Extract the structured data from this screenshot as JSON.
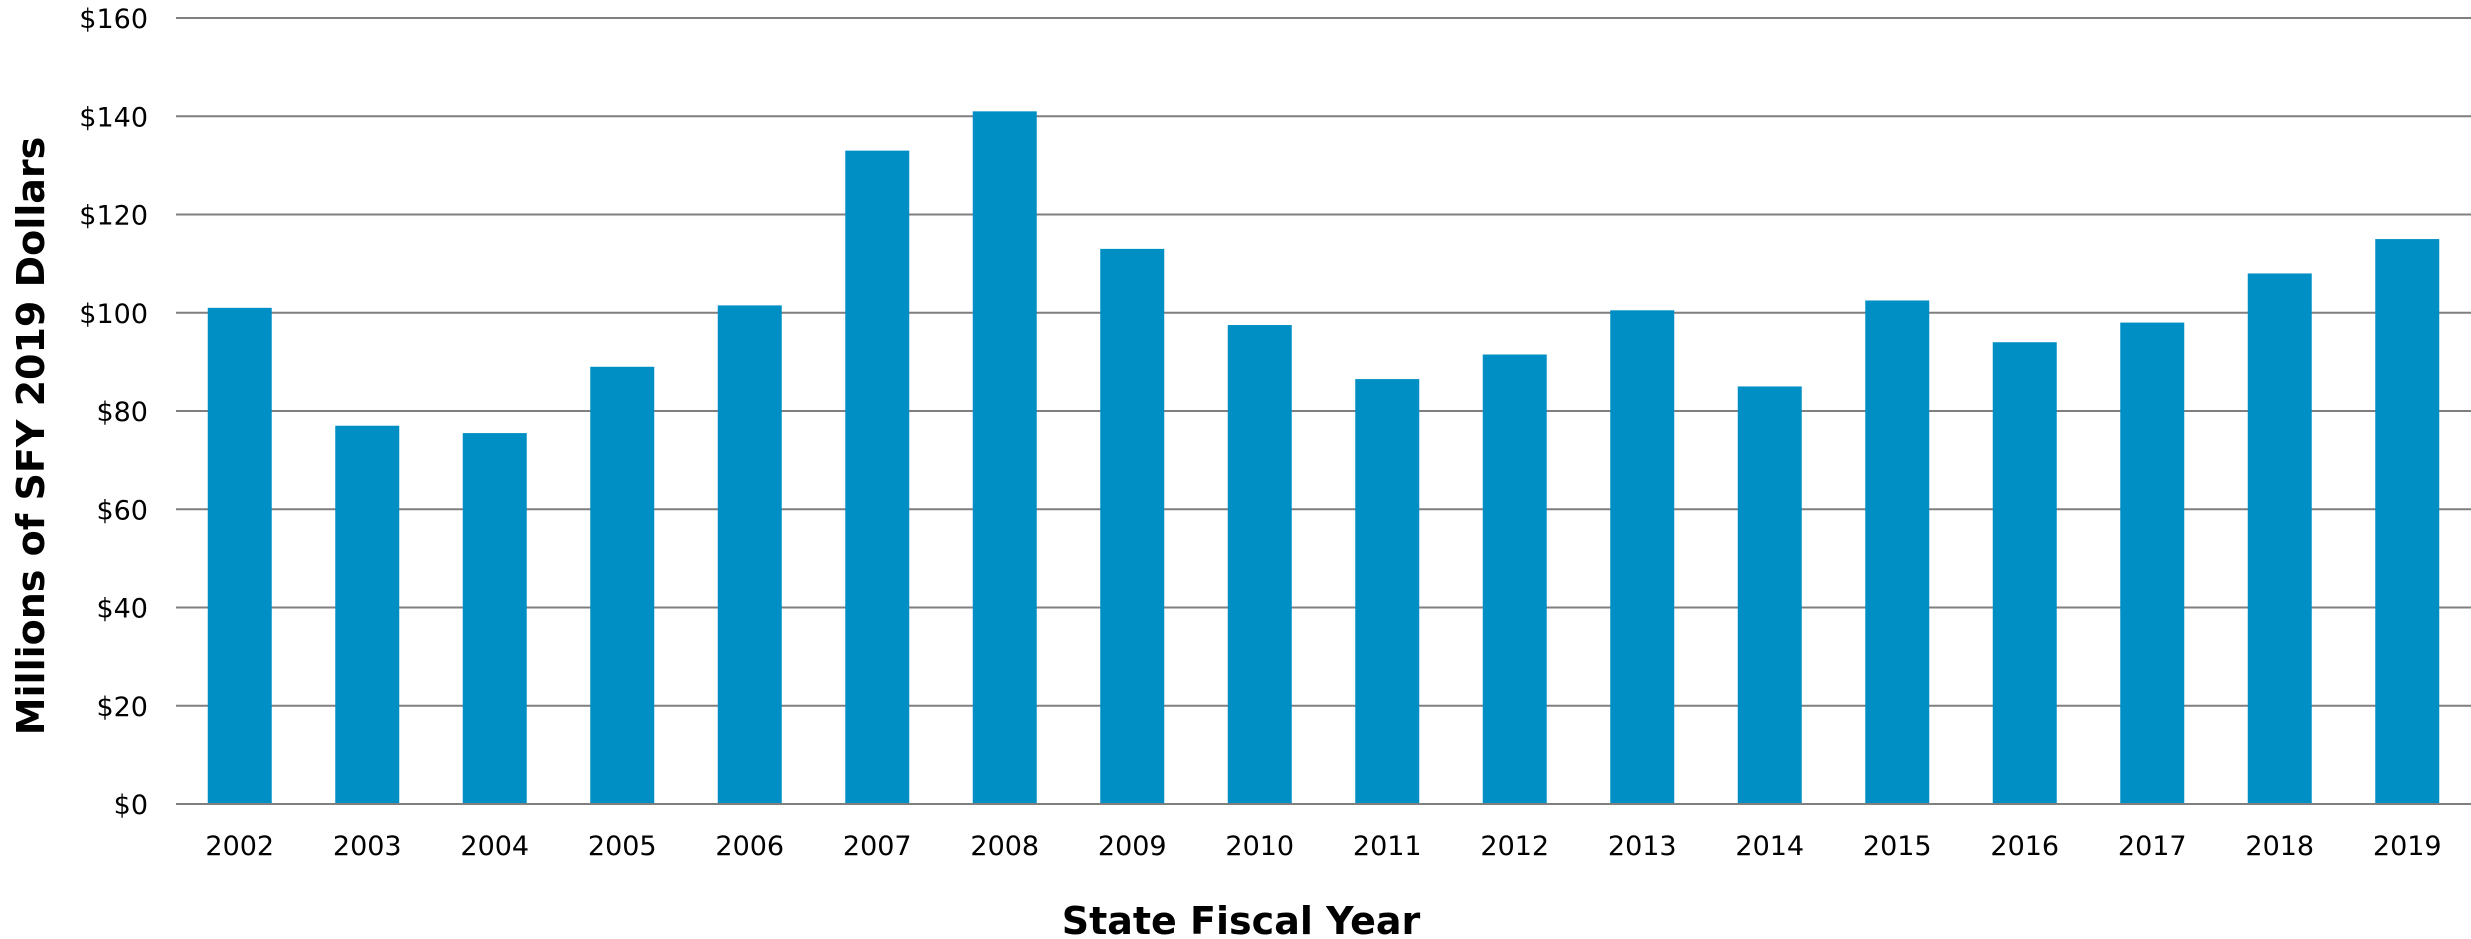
{
  "chart_data": {
    "type": "bar",
    "title": "",
    "xlabel": "State Fiscal Year",
    "ylabel": "Millions of SFY 2019 Dollars",
    "categories": [
      "2002",
      "2003",
      "2004",
      "2005",
      "2006",
      "2007",
      "2008",
      "2009",
      "2010",
      "2011",
      "2012",
      "2013",
      "2014",
      "2015",
      "2016",
      "2017",
      "2018",
      "2019"
    ],
    "values": [
      101,
      77,
      75.5,
      89,
      101.5,
      133,
      141,
      113,
      97.5,
      86.5,
      91.5,
      100.5,
      85,
      102.5,
      94,
      98,
      108,
      115
    ],
    "ylim": [
      0,
      160
    ],
    "yticks": [
      0,
      20,
      40,
      60,
      80,
      100,
      120,
      140,
      160
    ],
    "ytick_labels": [
      "$0",
      "$20",
      "$40",
      "$60",
      "$80",
      "$100",
      "$120",
      "$140",
      "$160"
    ],
    "grid": true,
    "legend": "none",
    "colors": {
      "bar": "#008FC5",
      "grid": "#7f7f7f"
    }
  }
}
